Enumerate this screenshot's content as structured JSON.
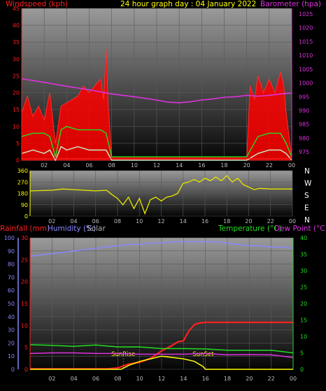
{
  "colors": {
    "wind": "#ff0000",
    "gust_fill": "#ff0000",
    "wind_avg": "#22dd22",
    "wind_min": "#c8f0c8",
    "baro": "#dd33dd",
    "dir": "#e8e800",
    "rain": "#ff2020",
    "humidity": "#8888ff",
    "solar": "#ffff00",
    "temp": "#22dd22",
    "dew": "#dd33dd",
    "axis_text": "#bbbbbb"
  },
  "chart_data": [
    {
      "type": "line",
      "id": "wind-baro",
      "title": "24 hour graph day : 04 January 2022",
      "left_label": "Windspeed (kph)",
      "right_label": "Barometer (hpa)",
      "x_ticks": [
        "02",
        "04",
        "06",
        "08",
        "10",
        "12",
        "14",
        "16",
        "18",
        "20",
        "22",
        "00"
      ],
      "y_left_ticks": [
        "0",
        "5",
        "10",
        "15",
        "20",
        "25",
        "30",
        "35",
        "40",
        "45"
      ],
      "y_left_range": [
        0,
        45
      ],
      "y_right_ticks": [
        "975",
        "980",
        "985",
        "990",
        "995",
        "1000",
        "1005",
        "1010",
        "1015",
        "1020",
        "1025"
      ],
      "y_right_range": [
        972,
        1027
      ],
      "series": [
        {
          "key": "gust",
          "x": [
            0,
            0.5,
            1,
            1.5,
            2,
            2.5,
            3,
            3.5,
            4,
            4.5,
            5,
            5.5,
            6,
            6.5,
            7,
            7.3,
            7.5,
            7.7,
            8,
            20,
            20.3,
            20.7,
            21,
            21.5,
            22,
            22.5,
            23,
            23.3,
            23.5,
            24
          ],
          "values": [
            14,
            19,
            13,
            16,
            12,
            20,
            5,
            16,
            17,
            18,
            19,
            22,
            20,
            22,
            24,
            18,
            33,
            16,
            1,
            1,
            22,
            18,
            25,
            20,
            24,
            20,
            26,
            22,
            14,
            1
          ]
        },
        {
          "key": "wind_avg",
          "x": [
            0,
            1,
            2,
            2.5,
            3,
            3.5,
            4,
            5,
            6,
            7,
            7.5,
            8,
            20,
            21,
            22,
            23,
            23.5,
            24
          ],
          "values": [
            7,
            8,
            8,
            7,
            1,
            9,
            10,
            9,
            9,
            9,
            8,
            1,
            1,
            7,
            8,
            8,
            5,
            1
          ]
        },
        {
          "key": "wind_min",
          "x": [
            0,
            1,
            2,
            2.5,
            3,
            3.5,
            4,
            5,
            6,
            7,
            7.5,
            8,
            20,
            21,
            22,
            23,
            23.5,
            24
          ],
          "values": [
            2,
            3,
            2,
            3,
            0,
            4,
            3,
            4,
            3,
            3,
            3,
            0,
            0,
            2,
            3,
            3,
            2,
            0
          ]
        },
        {
          "key": "baro",
          "x": [
            0,
            2,
            4,
            6,
            8,
            10,
            12,
            13,
            14,
            15,
            16,
            17,
            18,
            19,
            20,
            21,
            22,
            23,
            24
          ],
          "values": [
            1001.5,
            1000.2,
            998.8,
            997.5,
            996,
            995,
            993.8,
            993,
            992.8,
            993.2,
            993.8,
            994.2,
            994.8,
            995,
            995.5,
            995.2,
            995.5,
            996,
            996.3
          ]
        }
      ]
    },
    {
      "type": "line",
      "id": "direction",
      "right_labels": [
        "N",
        "W",
        "S",
        "E",
        "N"
      ],
      "x_ticks": [
        "02",
        "04",
        "06",
        "08",
        "10",
        "12",
        "14",
        "16",
        "18",
        "20",
        "22",
        "00"
      ],
      "y_ticks": [
        "0",
        "90",
        "180",
        "270",
        "360"
      ],
      "y_range": [
        0,
        360
      ],
      "series": [
        {
          "key": "dir",
          "x": [
            0,
            2,
            3,
            4,
            5,
            6,
            7,
            7.5,
            8,
            8.5,
            9,
            9.5,
            10,
            10.5,
            11,
            11.5,
            12,
            12.5,
            13,
            13.5,
            14,
            14.5,
            15,
            15.5,
            16,
            16.5,
            17,
            17.5,
            18,
            18.5,
            19,
            19.5,
            20,
            20.5,
            21,
            22,
            23,
            24
          ],
          "values": [
            200,
            205,
            215,
            210,
            205,
            200,
            205,
            170,
            140,
            90,
            150,
            60,
            140,
            20,
            130,
            150,
            120,
            150,
            160,
            180,
            260,
            270,
            290,
            270,
            300,
            280,
            310,
            280,
            320,
            270,
            300,
            250,
            230,
            210,
            220,
            215,
            215,
            215
          ]
        }
      ]
    },
    {
      "type": "line",
      "id": "rain-temp",
      "left_label_rain": "Rainfall (mm)",
      "left_label_hum": "Humidity (%)",
      "left_label_solar": "Solar",
      "right_label_temp": "Temperature (°C)",
      "right_label_dew": "Dew Point (°C)",
      "x_ticks": [
        "02",
        "04",
        "06",
        "08",
        "10",
        "12",
        "14",
        "16",
        "18",
        "20",
        "22",
        "00"
      ],
      "y_hum_ticks": [
        "0",
        "10",
        "20",
        "30",
        "40",
        "50",
        "60",
        "70",
        "80",
        "90",
        "100"
      ],
      "y_hum_range": [
        0,
        100
      ],
      "y_rain_ticks": [
        "0",
        "5",
        "10",
        "15",
        "20",
        "25",
        "30"
      ],
      "y_rain_range": [
        0,
        30
      ],
      "y_temp_ticks": [
        "0",
        "5",
        "10",
        "15",
        "20",
        "25",
        "30",
        "35",
        "40"
      ],
      "y_temp_range": [
        0,
        40
      ],
      "annotations": [
        {
          "label": "SunRise",
          "x": 8.5
        },
        {
          "label": "SunSet",
          "x": 15.8
        }
      ],
      "series": [
        {
          "key": "humidity",
          "x": [
            0,
            1,
            2,
            3,
            4,
            5,
            6,
            7,
            8,
            9,
            10,
            11,
            12,
            13,
            14,
            15,
            16,
            17,
            18,
            19,
            20,
            21,
            22,
            23,
            24
          ],
          "values": [
            86,
            87,
            88,
            89,
            90,
            91,
            92,
            93,
            94,
            95,
            95,
            96,
            96,
            97,
            97,
            97,
            97,
            97,
            96,
            95,
            94,
            94,
            93,
            93,
            92
          ]
        },
        {
          "key": "rain",
          "x": [
            0,
            7,
            8,
            9,
            10,
            11,
            12,
            13,
            13.5,
            14,
            14.5,
            15,
            15.5,
            16,
            20,
            22,
            24
          ],
          "values": [
            0.1,
            0.1,
            0.3,
            1.2,
            1.6,
            2.5,
            4.2,
            5.5,
            6.3,
            6.5,
            8.8,
            10.2,
            10.6,
            10.7,
            10.7,
            10.7,
            10.7
          ]
        },
        {
          "key": "temp",
          "x": [
            0,
            2,
            4,
            6,
            8,
            10,
            12,
            14,
            16,
            18,
            20,
            22,
            24
          ],
          "values": [
            7.5,
            7.3,
            7,
            7.4,
            6.8,
            6.8,
            6.3,
            6.3,
            6.2,
            5.8,
            5.8,
            5.8,
            5
          ]
        },
        {
          "key": "dew",
          "x": [
            0,
            2,
            4,
            6,
            8,
            10,
            12,
            14,
            16,
            18,
            20,
            22,
            24
          ],
          "values": [
            4.8,
            5,
            5,
            4.8,
            4.8,
            4.6,
            4.6,
            4.6,
            4.8,
            4.4,
            4.5,
            4.4,
            3.6
          ]
        },
        {
          "key": "solar",
          "x": [
            0,
            8.3,
            9,
            10,
            11,
            12,
            13,
            14,
            15,
            15.8,
            16,
            24
          ],
          "values": [
            0,
            0,
            0.3,
            0.6,
            0.8,
            1,
            0.9,
            0.8,
            0.6,
            0.2,
            0,
            0
          ]
        }
      ]
    }
  ]
}
